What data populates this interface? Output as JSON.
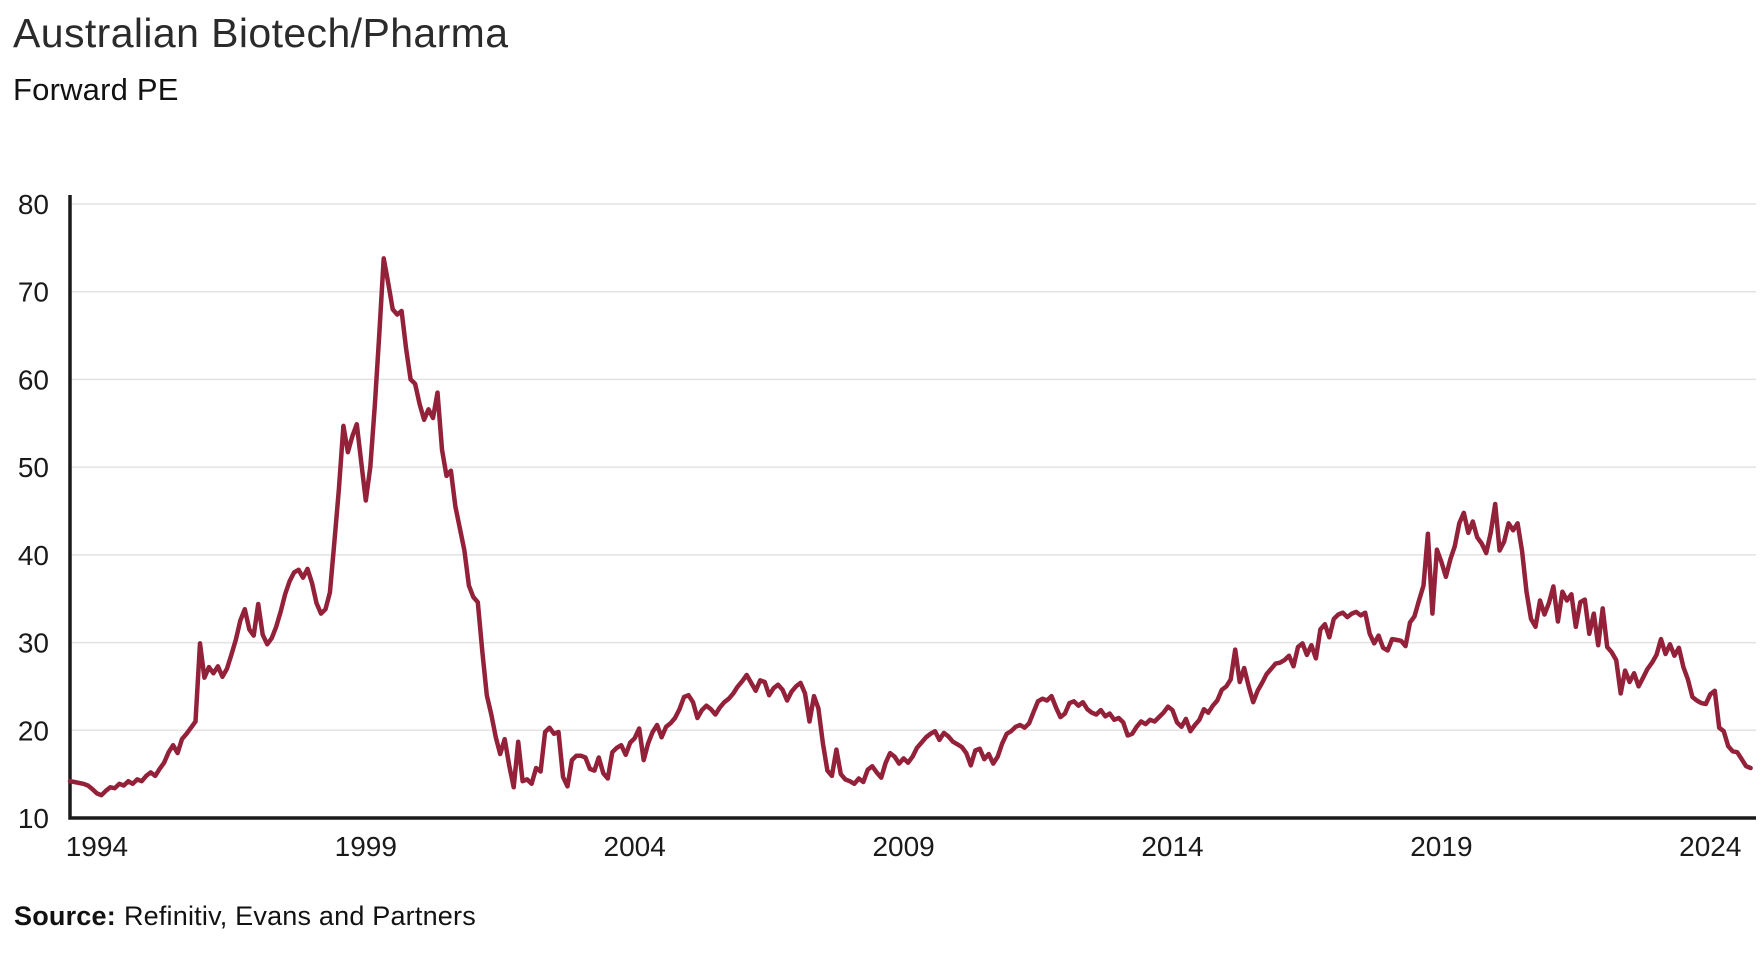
{
  "header": {
    "title": "Australian Biotech/Pharma",
    "subtitle": "Forward PE"
  },
  "source": {
    "label": "Source:",
    "text": "Refinitiv, Evans and Partners"
  },
  "chart_data": {
    "type": "line",
    "title": "Australian Biotech/Pharma",
    "subtitle": "Forward PE",
    "series_name": "Forward PE",
    "x_unit": "monthly",
    "x_start_year": 1993.5,
    "x_step_years": 0.0833333,
    "xlim": [
      1993.5,
      2024.85
    ],
    "ylim": [
      10,
      80
    ],
    "y_ticks": [
      10,
      20,
      30,
      40,
      50,
      60,
      70,
      80
    ],
    "x_ticks": [
      1994,
      1999,
      2004,
      2009,
      2014,
      2019,
      2024
    ],
    "grid": "horizontal",
    "legend": "none",
    "line_color": "#94213A",
    "axis_color": "#1a1a1a",
    "grid_color": "#e3e3e3",
    "values": [
      14.2,
      14.1,
      14.0,
      13.9,
      13.7,
      13.3,
      12.8,
      12.6,
      13.1,
      13.5,
      13.4,
      13.9,
      13.7,
      14.2,
      13.9,
      14.4,
      14.2,
      14.8,
      15.2,
      14.8,
      15.6,
      16.3,
      17.5,
      18.3,
      17.4,
      19.0,
      19.6,
      20.3,
      21.0,
      29.9,
      26.0,
      27.2,
      26.5,
      27.3,
      26.1,
      27.0,
      28.6,
      30.3,
      32.5,
      33.8,
      31.5,
      30.8,
      34.4,
      30.9,
      29.8,
      30.5,
      31.8,
      33.5,
      35.5,
      37.0,
      38.0,
      38.3,
      37.4,
      38.4,
      36.8,
      34.5,
      33.3,
      33.8,
      35.7,
      41.5,
      47.5,
      54.7,
      51.7,
      53.5,
      54.9,
      50.5,
      46.2,
      50.0,
      57.0,
      65.0,
      73.8,
      71.0,
      68.0,
      67.4,
      67.8,
      63.5,
      60.0,
      59.5,
      57.2,
      55.4,
      56.6,
      55.6,
      58.5,
      52.0,
      49.0,
      49.6,
      45.5,
      43.0,
      40.5,
      36.5,
      35.2,
      34.6,
      29.0,
      24.0,
      21.8,
      19.2,
      17.3,
      19.0,
      16.0,
      13.5,
      18.7,
      14.2,
      14.4,
      13.9,
      15.7,
      15.3,
      19.8,
      20.3,
      19.6,
      19.8,
      14.7,
      13.6,
      16.6,
      17.1,
      17.1,
      16.9,
      15.6,
      15.4,
      16.9,
      15.1,
      14.5,
      17.5,
      18.0,
      18.3,
      17.2,
      18.6,
      19.1,
      20.2,
      16.6,
      18.5,
      19.8,
      20.6,
      19.2,
      20.4,
      20.8,
      21.4,
      22.4,
      23.8,
      24.0,
      23.2,
      21.4,
      22.3,
      22.8,
      22.4,
      21.8,
      22.6,
      23.2,
      23.6,
      24.2,
      25.0,
      25.6,
      26.3,
      25.4,
      24.5,
      25.7,
      25.5,
      24.0,
      24.8,
      25.2,
      24.6,
      23.4,
      24.4,
      25.0,
      25.4,
      24.2,
      21.0,
      23.9,
      22.5,
      18.5,
      15.4,
      14.8,
      17.8,
      15.0,
      14.4,
      14.2,
      13.9,
      14.5,
      14.1,
      15.5,
      15.9,
      15.2,
      14.6,
      16.3,
      17.4,
      17.0,
      16.2,
      16.8,
      16.3,
      17.0,
      18.0,
      18.6,
      19.2,
      19.6,
      19.9,
      18.9,
      19.7,
      19.3,
      18.7,
      18.4,
      18.1,
      17.4,
      16.0,
      17.7,
      17.9,
      16.7,
      17.3,
      16.2,
      17.0,
      18.5,
      19.6,
      19.9,
      20.4,
      20.6,
      20.3,
      20.8,
      22.1,
      23.3,
      23.6,
      23.4,
      23.9,
      22.6,
      21.5,
      21.9,
      23.1,
      23.3,
      22.8,
      23.2,
      22.4,
      22.0,
      21.8,
      22.3,
      21.6,
      21.9,
      21.2,
      21.4,
      20.9,
      19.4,
      19.6,
      20.4,
      21.0,
      20.7,
      21.2,
      21.0,
      21.5,
      22.0,
      22.7,
      22.3,
      20.9,
      20.4,
      21.3,
      19.9,
      20.6,
      21.2,
      22.4,
      22.0,
      22.8,
      23.4,
      24.6,
      25.0,
      25.8,
      29.2,
      25.5,
      27.1,
      25.0,
      23.2,
      24.5,
      25.4,
      26.4,
      27.0,
      27.6,
      27.7,
      28.0,
      28.5,
      27.3,
      29.5,
      29.9,
      28.6,
      29.7,
      28.2,
      31.5,
      32.1,
      30.6,
      32.7,
      33.2,
      33.4,
      32.9,
      33.3,
      33.5,
      33.1,
      33.4,
      31.0,
      29.9,
      30.8,
      29.4,
      29.1,
      30.4,
      30.3,
      30.2,
      29.6,
      32.3,
      33.0,
      34.8,
      36.5,
      42.4,
      33.3,
      40.6,
      39.2,
      37.5,
      39.5,
      41.0,
      43.6,
      44.8,
      42.5,
      43.8,
      42.0,
      41.3,
      40.2,
      42.5,
      45.8,
      40.5,
      41.5,
      43.6,
      42.8,
      43.6,
      40.4,
      35.8,
      32.7,
      31.8,
      34.8,
      33.2,
      34.5,
      36.4,
      32.4,
      35.8,
      34.8,
      35.5,
      31.8,
      34.6,
      34.9,
      31.0,
      33.3,
      29.7,
      33.9,
      29.5,
      28.9,
      28.0,
      24.2,
      26.8,
      25.5,
      26.5,
      25.0,
      26.0,
      27.0,
      27.7,
      28.6,
      30.4,
      28.7,
      29.8,
      28.5,
      29.4,
      27.2,
      25.8,
      23.8,
      23.4,
      23.1,
      23.0,
      24.1,
      24.5,
      20.3,
      19.9,
      18.2,
      17.6,
      17.5,
      16.7,
      15.9,
      15.7
    ]
  }
}
